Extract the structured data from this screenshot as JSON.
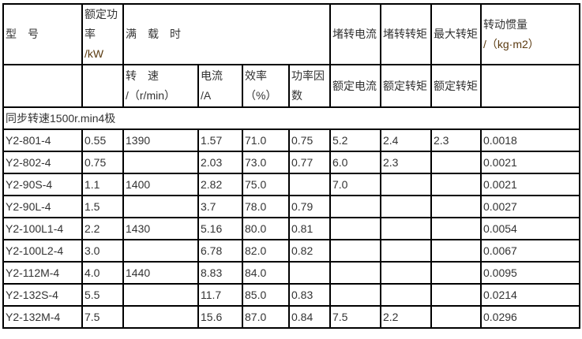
{
  "header": {
    "model": "型　号",
    "rated_power": "额定功率",
    "rated_power_unit": "/kW",
    "full_load": "满　载　时",
    "locked_current": "堵转电流",
    "locked_torque": "堵转转矩",
    "max_torque": "最大转矩",
    "inertia": "转动惯量",
    "inertia_unit": "/（kg·m2）",
    "speed": "转　速",
    "speed_unit": "/（r/min）",
    "current": "电流",
    "current_unit": "/A",
    "efficiency": "效率",
    "efficiency_unit": "（%）",
    "power_factor": "功率因数",
    "rated_current": "额定电流",
    "rated_torque_1": "额定转矩",
    "rated_torque_2": "额定转矩"
  },
  "section": "同步转速1500r.min4极",
  "rows": [
    [
      "Y2-801-4",
      "0.55",
      "1390",
      "1.57",
      "71.0",
      "0.75",
      "5.2",
      "2.4",
      "2.3",
      "0.0018"
    ],
    [
      "Y2-802-4",
      "0.75",
      "",
      "2.03",
      "73.0",
      "0.77",
      "6.0",
      "2.3",
      "",
      "0.0021"
    ],
    [
      "Y2-90S-4",
      "1.1",
      "1400",
      "2.82",
      "75.0",
      "",
      "7.0",
      "",
      "",
      "0.0021"
    ],
    [
      "Y2-90L-4",
      "1.5",
      "",
      "3.7",
      "78.0",
      "0.79",
      "",
      "",
      "",
      "0.0027"
    ],
    [
      "Y2-100L1-4",
      "2.2",
      "1430",
      "5.16",
      "80.0",
      "0.81",
      "",
      "",
      "",
      "0.0054"
    ],
    [
      "Y2-100L2-4",
      "3.0",
      "",
      "6.78",
      "82.0",
      "0.82",
      "",
      "",
      "",
      "0.0067"
    ],
    [
      "Y2-112M-4",
      "4.0",
      "1440",
      "8.83",
      "84.0",
      "",
      "",
      "",
      "",
      "0.0095"
    ],
    [
      "Y2-132S-4",
      "5.5",
      "",
      "11.7",
      "85.0",
      "0.83",
      "",
      "",
      "",
      "0.0214"
    ],
    [
      "Y2-132M-4",
      "7.5",
      "",
      "15.6",
      "87.0",
      "0.84",
      "7.5",
      "2.2",
      "",
      "0.0296"
    ]
  ]
}
